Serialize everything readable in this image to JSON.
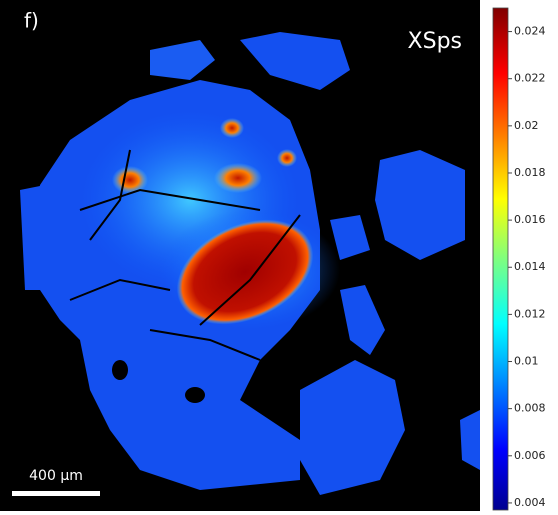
{
  "panel_label": "f)",
  "title": "XSps",
  "scale_bar": "400 µm",
  "colorbar": {
    "lim": [
      0.0037,
      0.025
    ],
    "ticks": [
      0.004,
      0.006,
      0.008,
      0.01,
      0.012,
      0.014,
      0.016,
      0.018,
      0.02,
      0.022,
      0.024
    ]
  }
}
